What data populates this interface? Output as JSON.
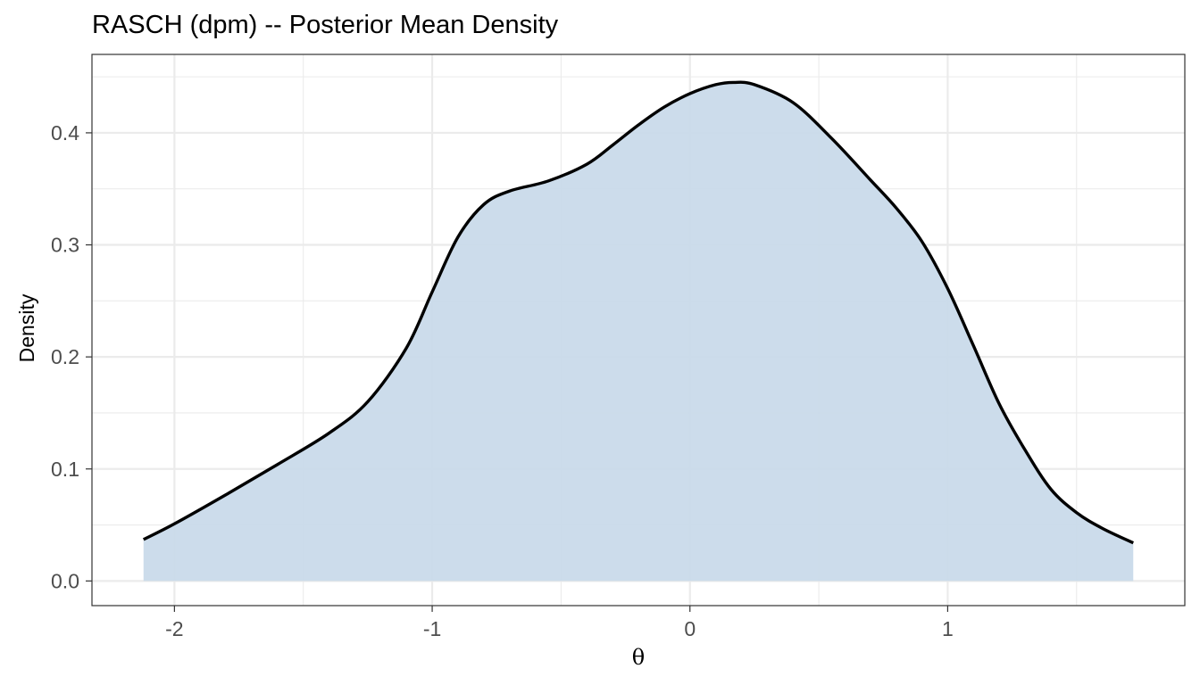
{
  "chart_data": {
    "type": "area",
    "title": "RASCH (dpm) -- Posterior Mean Density",
    "xlabel": "θ",
    "ylabel": "Density",
    "xlim": [
      -2.32,
      1.92
    ],
    "ylim": [
      -0.022,
      0.47
    ],
    "x_ticks": [
      -2,
      -1,
      0,
      1
    ],
    "x_tick_labels": [
      "-2",
      "-1",
      "0",
      "1"
    ],
    "y_ticks": [
      0.0,
      0.1,
      0.2,
      0.3,
      0.4
    ],
    "y_tick_labels": [
      "0.0",
      "0.1",
      "0.2",
      "0.3",
      "0.4"
    ],
    "grid": true,
    "fill_color": "#c8d9e9",
    "line_color": "#000000",
    "series": [
      {
        "x": [
          -2.12,
          -2.0,
          -1.8,
          -1.6,
          -1.4,
          -1.25,
          -1.1,
          -1.0,
          -0.9,
          -0.8,
          -0.7,
          -0.55,
          -0.4,
          -0.3,
          -0.2,
          -0.1,
          0.0,
          0.1,
          0.17,
          0.25,
          0.4,
          0.55,
          0.7,
          0.8,
          0.9,
          1.0,
          1.1,
          1.2,
          1.3,
          1.4,
          1.5,
          1.6,
          1.72
        ],
        "values": [
          0.037,
          0.051,
          0.077,
          0.104,
          0.132,
          0.16,
          0.208,
          0.258,
          0.307,
          0.336,
          0.348,
          0.357,
          0.372,
          0.389,
          0.407,
          0.423,
          0.435,
          0.443,
          0.445,
          0.443,
          0.427,
          0.395,
          0.358,
          0.333,
          0.303,
          0.261,
          0.21,
          0.158,
          0.117,
          0.082,
          0.061,
          0.047,
          0.034
        ]
      }
    ]
  }
}
